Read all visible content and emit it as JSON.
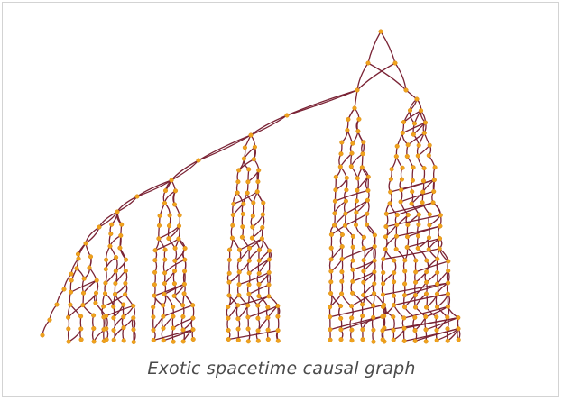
{
  "caption": "Exotic spacetime causal graph",
  "colors": {
    "edge": "#7a2335",
    "node": "#f0a21c",
    "node_stroke": "#d98a12",
    "border": "#d3d3d3",
    "caption": "#4a4a4a"
  }
}
